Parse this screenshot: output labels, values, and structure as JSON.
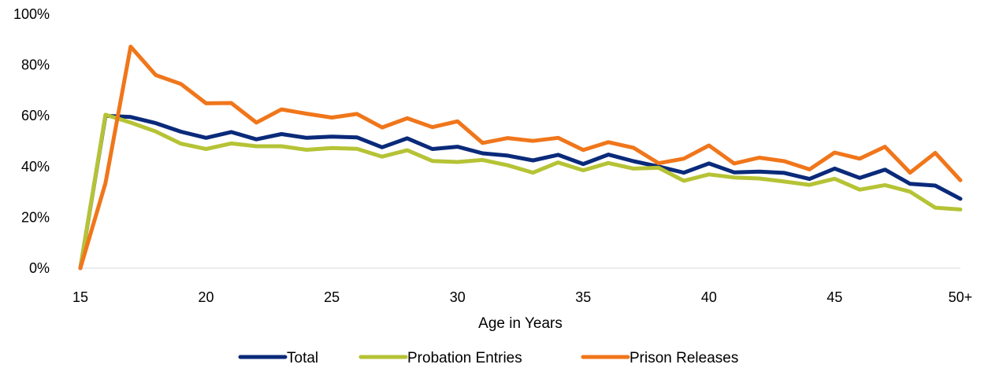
{
  "chart_data": {
    "type": "line",
    "title": "",
    "xlabel": "Age in Years",
    "ylabel": "",
    "ylim": [
      0,
      100
    ],
    "grid": false,
    "legend_position": "bottom",
    "y_ticks": [
      0,
      20,
      40,
      60,
      80,
      100
    ],
    "y_tick_labels": [
      "0%",
      "20%",
      "40%",
      "60%",
      "80%",
      "100%"
    ],
    "x_ticks": [
      15,
      20,
      25,
      30,
      35,
      40,
      45,
      50
    ],
    "x_tick_labels": [
      "15",
      "20",
      "25",
      "30",
      "35",
      "40",
      "45",
      "50+"
    ],
    "x": [
      15,
      16,
      17,
      18,
      19,
      20,
      21,
      22,
      23,
      24,
      25,
      26,
      27,
      28,
      29,
      30,
      31,
      32,
      33,
      34,
      35,
      36,
      37,
      38,
      39,
      40,
      41,
      42,
      43,
      44,
      45,
      46,
      47,
      48,
      49,
      50
    ],
    "series": [
      {
        "name": "Total",
        "color": "#0a2a7a",
        "values": [
          0,
          60,
          59.5,
          57.1,
          53.7,
          51.3,
          53.6,
          50.7,
          52.8,
          51.3,
          51.8,
          51.5,
          47.6,
          51.1,
          46.9,
          47.8,
          45.2,
          44.3,
          42.4,
          44.6,
          41,
          44.7,
          42.1,
          40,
          37.6,
          41.2,
          37.7,
          38,
          37.5,
          35.1,
          39.2,
          35.5,
          38.8,
          33.2,
          32.5,
          27.3
        ]
      },
      {
        "name": "Probation Entries",
        "color": "#b5c335",
        "values": [
          0,
          60.4,
          57.3,
          53.8,
          49,
          46.9,
          49.1,
          48,
          48,
          46.6,
          47.3,
          47,
          43.9,
          46.4,
          42.2,
          41.8,
          42.6,
          40.5,
          37.6,
          41.6,
          38.5,
          41.4,
          39.2,
          39.5,
          34.4,
          36.9,
          35.7,
          35.3,
          34.1,
          32.8,
          35.2,
          30.9,
          32.7,
          30.1,
          23.8,
          23.1
        ]
      },
      {
        "name": "Prison Releases",
        "color": "#f0761b",
        "values": [
          0,
          33.5,
          87.2,
          76,
          72.5,
          64.9,
          65,
          57.3,
          62.5,
          60.8,
          59.3,
          60.7,
          55.4,
          59,
          55.5,
          57.8,
          49.3,
          51.2,
          50.1,
          51.3,
          46.5,
          49.6,
          47.4,
          41.3,
          43.1,
          48.3,
          41.2,
          43.5,
          42.1,
          38.9,
          45.5,
          43.1,
          47.8,
          37.6,
          45.4,
          34.6
        ]
      }
    ]
  }
}
